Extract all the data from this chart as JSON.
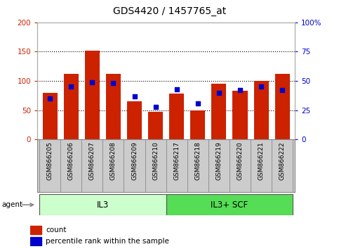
{
  "title": "GDS4420 / 1457765_at",
  "samples": [
    "GSM866205",
    "GSM866206",
    "GSM866207",
    "GSM866208",
    "GSM866209",
    "GSM866210",
    "GSM866217",
    "GSM866218",
    "GSM866219",
    "GSM866220",
    "GSM866221",
    "GSM866222"
  ],
  "count_values": [
    80,
    112,
    152,
    112,
    65,
    47,
    79,
    49,
    95,
    83,
    100,
    112
  ],
  "percentile_values": [
    35,
    45,
    49,
    48,
    37,
    28,
    43,
    31,
    40,
    42,
    45,
    42
  ],
  "groups": [
    {
      "label": "IL3",
      "start": 0,
      "end": 6,
      "color": "#ccffcc"
    },
    {
      "label": "IL3+ SCF",
      "start": 6,
      "end": 12,
      "color": "#55dd55"
    }
  ],
  "ylim_left": [
    0,
    200
  ],
  "ylim_right": [
    0,
    100
  ],
  "yticks_left": [
    0,
    50,
    100,
    150,
    200
  ],
  "yticks_right": [
    0,
    25,
    50,
    75,
    100
  ],
  "yticklabels_right": [
    "0",
    "25",
    "50",
    "75",
    "100%"
  ],
  "bar_color": "#cc2200",
  "dot_color": "#0000cc",
  "bg_color": "#ffffff",
  "left_tick_color": "#cc2200",
  "right_tick_color": "#0000cc",
  "agent_label": "agent",
  "legend_count": "count",
  "legend_pct": "percentile rank within the sample",
  "xlabel_bg": "#cccccc"
}
